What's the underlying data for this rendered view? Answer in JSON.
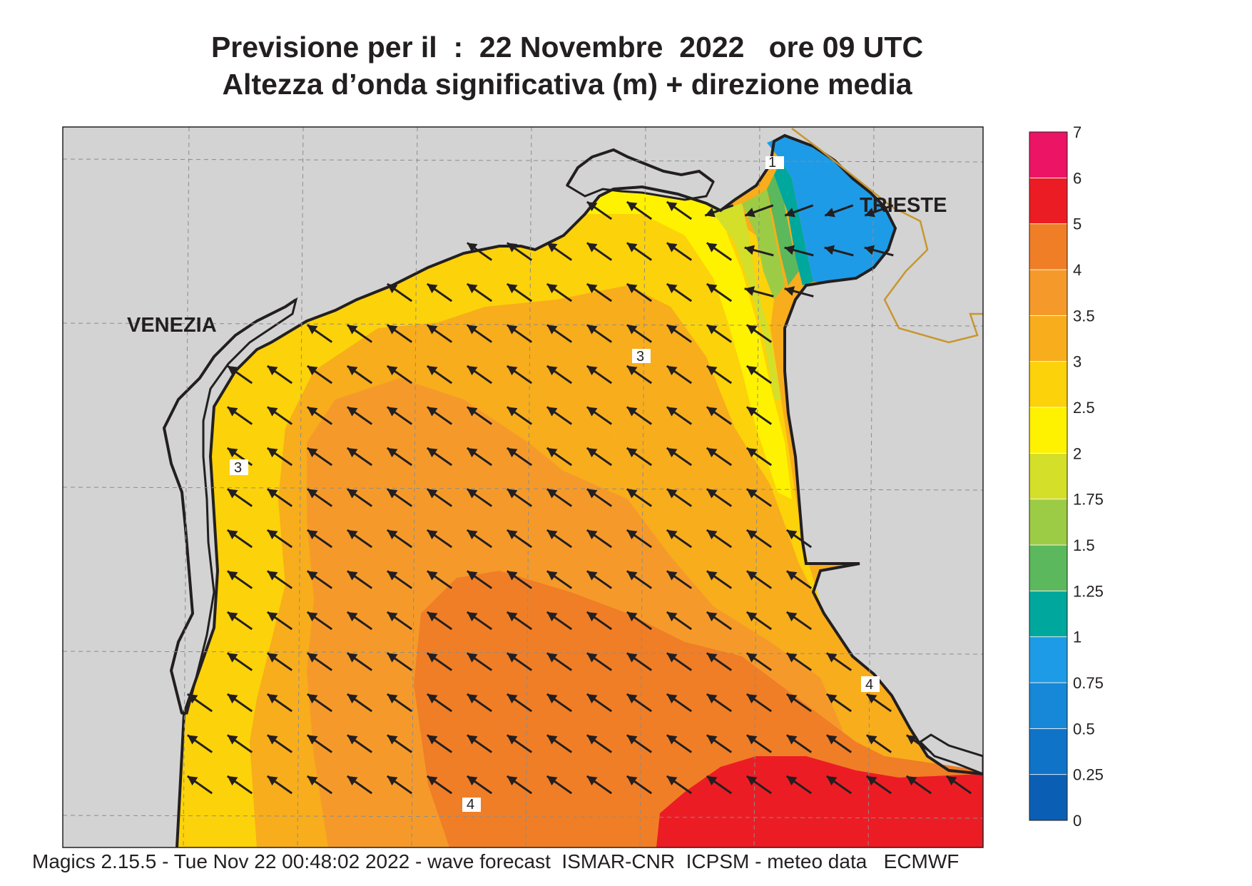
{
  "title": {
    "line1": "Previsione per il  :  22 Novembre  2022   ore 09 UTC",
    "line2": "Altezza d’onda significativa (m) + direzione media"
  },
  "footer": "Magics 2.15.5 - Tue Nov 22 00:48:02 2022 - wave forecast  ISMAR-CNR  ICPSM - meteo data   ECMWF",
  "map": {
    "cities": [
      {
        "id": "venezia",
        "name": "VENEZIA"
      },
      {
        "id": "trieste",
        "name": "TRIESTE"
      }
    ],
    "contour_labels": [
      "1",
      "3",
      "3",
      "4",
      "4"
    ],
    "mean_wave_direction": "from south-east (arrows pointing north-west)",
    "colors": {
      "land": "#d3d3d3",
      "coastline": "#231f20",
      "border": "#c8962e",
      "arrow": "#231f20"
    }
  },
  "legend": {
    "unit": "m",
    "bands": [
      {
        "from": "0",
        "to": "0.25",
        "color": "#0a5fb4"
      },
      {
        "from": "0.25",
        "to": "0.5",
        "color": "#0f73c8"
      },
      {
        "from": "0.5",
        "to": "0.75",
        "color": "#1787d7"
      },
      {
        "from": "0.75",
        "to": "1",
        "color": "#1e9be6"
      },
      {
        "from": "1",
        "to": "1.25",
        "color": "#00a79d"
      },
      {
        "from": "1.25",
        "to": "1.5",
        "color": "#5cb85c"
      },
      {
        "from": "1.5",
        "to": "1.75",
        "color": "#9ccc45"
      },
      {
        "from": "1.75",
        "to": "2",
        "color": "#d4df2a"
      },
      {
        "from": "2",
        "to": "2.5",
        "color": "#fff200"
      },
      {
        "from": "2.5",
        "to": "3",
        "color": "#fcd20a"
      },
      {
        "from": "3",
        "to": "3.5",
        "color": "#f8ad1c"
      },
      {
        "from": "3.5",
        "to": "4",
        "color": "#f59a2a"
      },
      {
        "from": "4",
        "to": "5",
        "color": "#f07e26"
      },
      {
        "from": "5",
        "to": "6",
        "color": "#ec1c24"
      },
      {
        "from": "6",
        "to": "7",
        "color": "#ec1464"
      }
    ],
    "tick_labels": [
      "0",
      "0.25",
      "0.5",
      "0.75",
      "1",
      "1.25",
      "1.5",
      "1.75",
      "2",
      "2.5",
      "3",
      "3.5",
      "4",
      "5",
      "6",
      "7"
    ]
  }
}
